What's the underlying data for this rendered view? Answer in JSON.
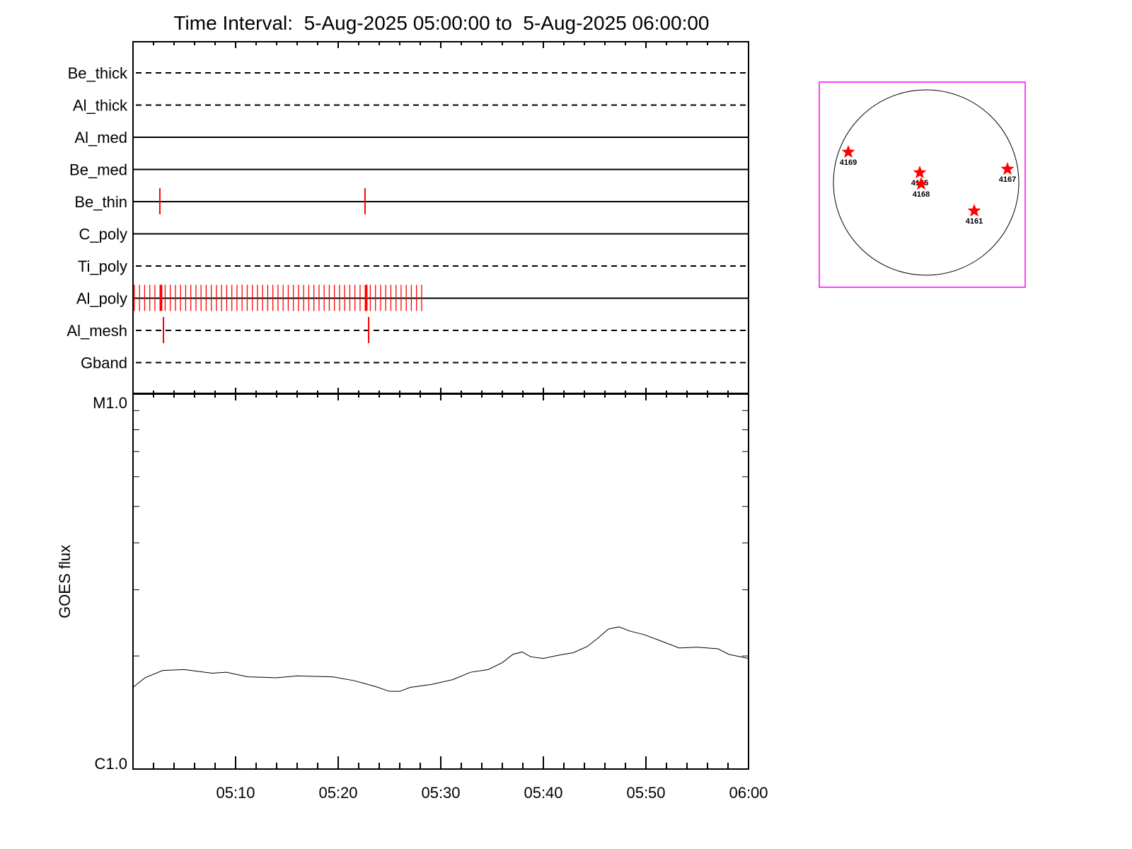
{
  "chart_data": [
    {
      "type": "timeline",
      "title": "Time Interval:  5-Aug-2025 05:00:00 to  5-Aug-2025 06:00:00",
      "xlim": [
        "05:00:00",
        "06:00:00"
      ],
      "rows": [
        {
          "name": "Be_thick",
          "style": "dashed",
          "events": []
        },
        {
          "name": "Al_thick",
          "style": "dashed",
          "events": []
        },
        {
          "name": "Al_med",
          "style": "solid",
          "events": []
        },
        {
          "name": "Be_med",
          "style": "solid",
          "events": []
        },
        {
          "name": "Be_thin",
          "style": "solid",
          "events": [
            "05:02:37",
            "05:22:37"
          ]
        },
        {
          "name": "C_poly",
          "style": "solid",
          "events": []
        },
        {
          "name": "Ti_poly",
          "style": "dashed",
          "events": []
        },
        {
          "name": "Al_poly",
          "style": "solid",
          "events": [],
          "event_series": {
            "start": "05:00:08",
            "end": "05:28:17",
            "cadence_s": 30
          },
          "emphasized_events": [
            "05:02:45",
            "05:22:45"
          ]
        },
        {
          "name": "Al_mesh",
          "style": "dashed",
          "events": [
            "05:02:58",
            "05:22:58"
          ]
        },
        {
          "name": "Gband",
          "style": "dashed",
          "events": []
        }
      ],
      "event_color": "#ff0000"
    },
    {
      "type": "line",
      "ylabel": "GOES flux",
      "yscale": "log",
      "ylim": [
        1e-06,
        1e-05
      ],
      "ytick_labels": [
        "C1.0",
        "M1.0"
      ],
      "xtick_labels": [
        "05:10",
        "05:20",
        "05:30",
        "05:40",
        "05:50",
        "06:00"
      ],
      "x": [
        "05:00:00",
        "05:01:10",
        "05:02:54",
        "05:05:00",
        "05:07:43",
        "05:09:06",
        "05:11:10",
        "05:13:56",
        "05:16:00",
        "05:19:27",
        "05:21:31",
        "05:23:35",
        "05:25:00",
        "05:26:00",
        "05:27:02",
        "05:29:06",
        "05:31:10",
        "05:32:54",
        "05:34:37",
        "05:36:00",
        "05:37:02",
        "05:37:56",
        "05:38:46",
        "05:40:00",
        "05:41:31",
        "05:42:54",
        "05:44:17",
        "05:45:19",
        "05:46:21",
        "05:47:23",
        "05:48:25",
        "05:49:48",
        "05:51:31",
        "05:53:14",
        "05:55:00",
        "05:57:02",
        "05:58:04",
        "06:00:00"
      ],
      "y": [
        1.65e-06,
        1.75e-06,
        1.83e-06,
        1.84e-06,
        1.8e-06,
        1.81e-06,
        1.76e-06,
        1.75e-06,
        1.77e-06,
        1.76e-06,
        1.72e-06,
        1.66e-06,
        1.61e-06,
        1.61e-06,
        1.65e-06,
        1.68e-06,
        1.73e-06,
        1.81e-06,
        1.84e-06,
        1.92e-06,
        2.02e-06,
        2.05e-06,
        1.99e-06,
        1.97e-06,
        2.01e-06,
        2.04e-06,
        2.12e-06,
        2.23e-06,
        2.36e-06,
        2.39e-06,
        2.33e-06,
        2.28e-06,
        2.19e-06,
        2.1e-06,
        2.11e-06,
        2.09e-06,
        2.02e-06,
        1.97e-06
      ]
    },
    {
      "type": "scatter",
      "description_frame_color": "#ff00ff",
      "marker_color": "#ff0000",
      "regions": [
        "4169",
        "4165",
        "4168",
        "4167",
        "4161"
      ]
    }
  ]
}
